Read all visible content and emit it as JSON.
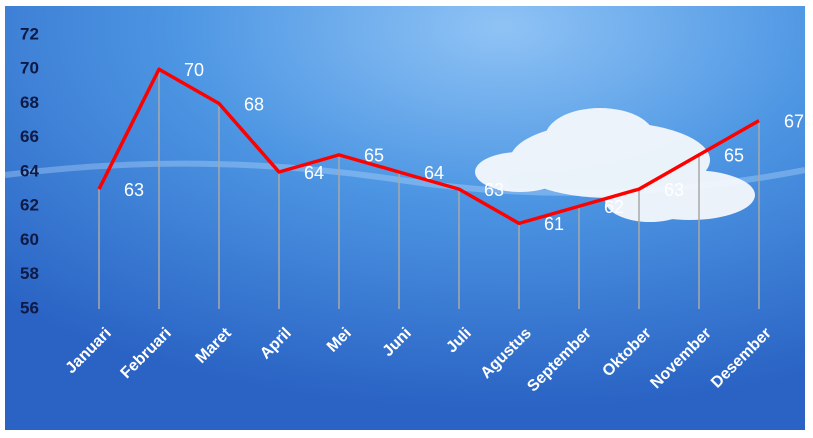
{
  "chart_data": {
    "type": "line",
    "categories": [
      "Januari",
      "Februari",
      "Maret",
      "April",
      "Mei",
      "Juni",
      "Juli",
      "Agustus",
      "September",
      "Oktober",
      "November",
      "Desember"
    ],
    "series": [
      {
        "color": "#ff0000",
        "values": [
          63,
          70,
          68,
          64,
          65,
          64,
          63,
          61,
          62,
          63,
          65,
          67
        ]
      }
    ],
    "ylim": [
      56,
      72
    ],
    "yticks": [
      56,
      58,
      60,
      62,
      64,
      66,
      68,
      70,
      72
    ],
    "drop_lines": true,
    "drop_line_color": "#a8a8a8"
  }
}
